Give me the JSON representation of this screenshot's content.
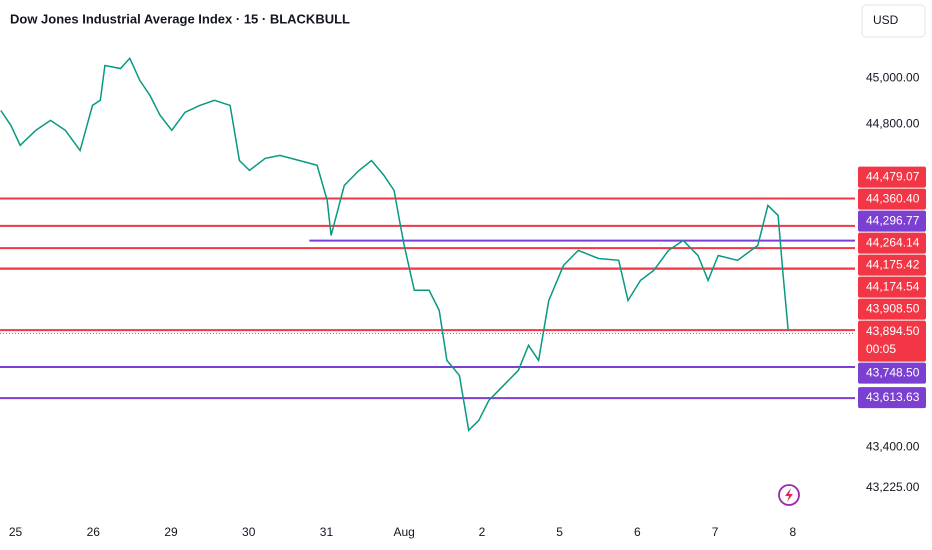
{
  "chart_data": {
    "type": "line",
    "title": "Dow Jones Industrial Average Index · 15 · BLACKBULL",
    "currency": "USD",
    "color": "#089981",
    "grid": false,
    "x": [
      -0.19,
      -0.06,
      0.06,
      0.26,
      0.45,
      0.64,
      0.83,
      0.99,
      1.09,
      1.15,
      1.35,
      1.47,
      1.6,
      1.73,
      1.86,
      2.01,
      2.18,
      2.37,
      2.56,
      2.76,
      2.88,
      3.01,
      3.21,
      3.4,
      3.65,
      3.88,
      4.01,
      4.06,
      4.23,
      4.42,
      4.58,
      4.74,
      4.87,
      4.94,
      5.0,
      5.13,
      5.32,
      5.45,
      5.55,
      5.71,
      5.83,
      5.96,
      6.09,
      6.28,
      6.47,
      6.6,
      6.73,
      6.86,
      7.05,
      7.24,
      7.5,
      7.76,
      7.88,
      8.04,
      8.21,
      8.4,
      8.59,
      8.78,
      8.91,
      9.04,
      9.29,
      9.55,
      9.68,
      9.81,
      9.87,
      9.94
    ],
    "values": [
      44861,
      44796,
      44710,
      44775,
      44818,
      44775,
      44688,
      44883,
      44905,
      45056,
      45043,
      45087,
      44991,
      44926,
      44840,
      44775,
      44853,
      44883,
      44905,
      44883,
      44644,
      44601,
      44653,
      44666,
      44644,
      44623,
      44471,
      44319,
      44536,
      44601,
      44644,
      44579,
      44514,
      44384,
      44276,
      44081,
      44081,
      43994,
      43777,
      43712,
      43474,
      43517,
      43604,
      43669,
      43734,
      43842,
      43777,
      44037,
      44189,
      44254,
      44219,
      44211,
      44037,
      44124,
      44167,
      44254,
      44297,
      44232,
      44124,
      44232,
      44211,
      44276,
      44449,
      44406,
      44167,
      43907
    ],
    "xlim": [
      -0.2,
      10.8
    ],
    "ylim": [
      43085,
      45340
    ],
    "xticks": [
      {
        "value": 0,
        "label": "25"
      },
      {
        "value": 1,
        "label": "26"
      },
      {
        "value": 2,
        "label": "29"
      },
      {
        "value": 3,
        "label": "30"
      },
      {
        "value": 4,
        "label": "31"
      },
      {
        "value": 5,
        "label": "Aug"
      },
      {
        "value": 6,
        "label": "2"
      },
      {
        "value": 7,
        "label": "5"
      },
      {
        "value": 8,
        "label": "6"
      },
      {
        "value": 9,
        "label": "7"
      },
      {
        "value": 10,
        "label": "8"
      }
    ],
    "yticks": [
      {
        "value": 45000,
        "label": "45,000.00"
      },
      {
        "value": 44800,
        "label": "44,800.00"
      },
      {
        "value": 43400,
        "label": "43,400.00"
      },
      {
        "value": 43225,
        "label": "43,225.00"
      }
    ],
    "levels": [
      {
        "value": 44479.07,
        "label": "44,479.07",
        "color": "#f23645"
      },
      {
        "value": 44360.4,
        "label": "44,360.40",
        "color": "#f23645"
      },
      {
        "value": 44296.77,
        "label": "44,296.77",
        "color": "#7b3fd1",
        "x_start": 3.78
      },
      {
        "value": 44264.14,
        "label": "44,264.14",
        "color": "#f23645"
      },
      {
        "value": 44175.42,
        "label": "44,175.42",
        "color": "#f23645"
      },
      {
        "value": 44174.54,
        "label": "44,174.54",
        "color": "#f23645"
      },
      {
        "value": 43908.5,
        "label": "43,908.50",
        "color": "#f23645"
      },
      {
        "value": 43748.5,
        "label": "43,748.50",
        "color": "#7b3fd1"
      },
      {
        "value": 43613.63,
        "label": "43,613.63",
        "color": "#7b3fd1"
      }
    ],
    "last_price": {
      "value": 43894.5,
      "label": "43,894.50",
      "countdown": "00:05",
      "color": "#f23645"
    }
  }
}
